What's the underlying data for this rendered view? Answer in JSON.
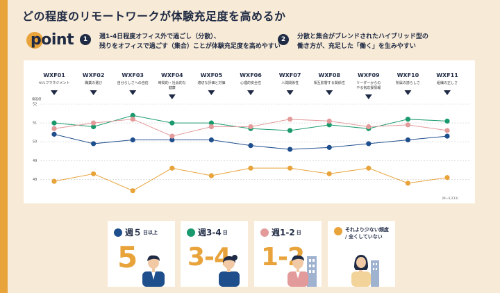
{
  "title": "どの程度のリモートワークが体験充足度を高めるか",
  "point_label": "point",
  "points": [
    {
      "num": "1",
      "line1": "週1-4日程度オフィス外で過ごし（分散）、",
      "line2": "残りをオフィスで過ごす（集合）ことが体験充足度を高めやすい"
    },
    {
      "num": "2",
      "line1": "分散と集合がブレンドされたハイブリッド型の",
      "line2": "働き方が、充足した「働く」を生みやすい"
    }
  ],
  "colors": {
    "navy": "#1f4e8c",
    "green": "#1a9a6c",
    "pink": "#e39a9a",
    "orange": "#e8a33a"
  },
  "chart_data": {
    "type": "line",
    "ylabel": "偏差値",
    "ylim": [
      47.5,
      52
    ],
    "yticks": [
      48,
      49,
      50,
      51,
      52
    ],
    "grid": true,
    "categories": [
      {
        "code": "WXF01",
        "label": [
          "セルフマネジメント"
        ]
      },
      {
        "code": "WXF02",
        "label": [
          "職業の選び"
        ]
      },
      {
        "code": "WXF03",
        "label": [
          "自分らしさへの自信"
        ]
      },
      {
        "code": "WXF04",
        "label": [
          "時間的・社会的な",
          "健康"
        ]
      },
      {
        "code": "WXF05",
        "label": [
          "適切な評価と対価"
        ]
      },
      {
        "code": "WXF06",
        "label": [
          "心理的安全性"
        ]
      },
      {
        "code": "WXF07",
        "label": [
          "人間関係性"
        ]
      },
      {
        "code": "WXF08",
        "label": [
          "相互影響する関係性"
        ]
      },
      {
        "code": "WXF09",
        "label": [
          "リーダーからの",
          "やる気応援情報"
        ]
      },
      {
        "code": "WXF10",
        "label": [
          "所属の誇らしさ"
        ]
      },
      {
        "code": "WXF11",
        "label": [
          "組織の正しさ"
        ]
      }
    ],
    "series": [
      {
        "color": "#1f4e8c",
        "values": [
          50.4,
          49.9,
          50.1,
          50.1,
          50.1,
          49.8,
          49.6,
          49.7,
          49.9,
          50.1,
          50.3
        ]
      },
      {
        "color": "#1a9a6c",
        "values": [
          51.0,
          50.8,
          51.4,
          51.0,
          51.0,
          50.7,
          50.6,
          50.9,
          50.7,
          51.2,
          51.1
        ]
      },
      {
        "color": "#e39a9a",
        "values": [
          50.7,
          51.0,
          51.2,
          50.3,
          50.8,
          50.8,
          51.2,
          51.1,
          50.8,
          50.9,
          50.6
        ]
      },
      {
        "color": "#e8a33a",
        "values": [
          47.9,
          48.3,
          47.4,
          48.6,
          48.2,
          48.6,
          48.6,
          48.3,
          48.6,
          47.8,
          48.1
        ]
      }
    ],
    "footnote": "(N=4,233)"
  },
  "legend": [
    {
      "color": "#1f4e8c",
      "label": "週５",
      "suffix": "日以上",
      "big": "5"
    },
    {
      "color": "#1a9a6c",
      "label": "週3-4",
      "suffix": "日",
      "big": "3-4"
    },
    {
      "color": "#e39a9a",
      "label": "週1-2",
      "suffix": "日",
      "big": "1-2"
    },
    {
      "color": "#e8a33a",
      "note1": "それより少ない頻度",
      "note2": "/ 全くしていない"
    }
  ]
}
